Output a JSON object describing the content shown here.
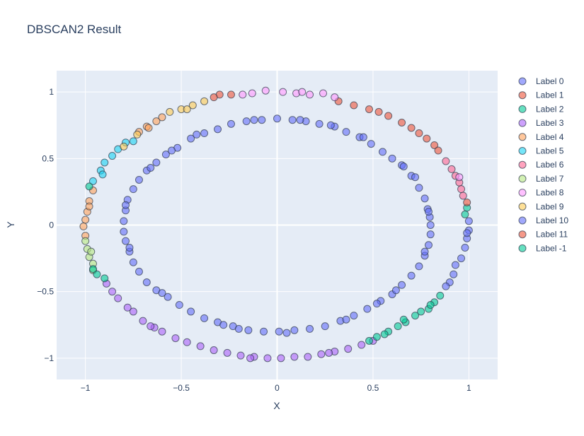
{
  "chart_data": {
    "type": "scatter",
    "title": "DBSCAN2 Result",
    "xlabel": "X",
    "ylabel": "Y",
    "xlim": [
      -1.15,
      1.15
    ],
    "ylim": [
      -1.16,
      1.16
    ],
    "xticks": [
      -1,
      -0.5,
      0,
      0.5,
      1
    ],
    "xtick_labels": [
      "−1",
      "−0.5",
      "0",
      "0.5",
      "1"
    ],
    "yticks": [
      -1,
      -0.5,
      0,
      0.5,
      1
    ],
    "ytick_labels": [
      "−1",
      "−0.5",
      "0",
      "0.5",
      "1"
    ],
    "grid": true,
    "legend_position": "right",
    "plot_background": "#e5ecf6",
    "series": [
      {
        "name": "Label 0",
        "color": "#636efa",
        "points": [
          [
            0.8,
            0.0
          ],
          [
            0.796,
            0.06
          ],
          [
            0.785,
            0.12
          ],
          [
            0.77,
            0.2
          ],
          [
            0.74,
            0.28
          ],
          [
            0.7,
            0.37
          ],
          [
            0.65,
            0.45
          ],
          [
            0.6,
            0.5
          ],
          [
            0.55,
            0.55
          ],
          [
            0.49,
            0.61
          ],
          [
            0.43,
            0.66
          ],
          [
            0.36,
            0.7
          ],
          [
            0.3,
            0.74
          ],
          [
            0.22,
            0.76
          ],
          [
            0.15,
            0.78
          ],
          [
            0.08,
            0.79
          ],
          [
            0.0,
            0.8
          ],
          [
            -0.08,
            0.79
          ],
          [
            -0.16,
            0.78
          ],
          [
            -0.24,
            0.76
          ],
          [
            -0.31,
            0.72
          ],
          [
            -0.38,
            0.69
          ],
          [
            -0.45,
            0.65
          ],
          [
            -0.52,
            0.58
          ],
          [
            -0.58,
            0.53
          ],
          [
            -0.63,
            0.47
          ],
          [
            -0.68,
            0.41
          ],
          [
            -0.72,
            0.34
          ],
          [
            -0.75,
            0.27
          ],
          [
            -0.78,
            0.19
          ],
          [
            -0.79,
            0.11
          ],
          [
            -0.8,
            0.03
          ],
          [
            -0.8,
            -0.05
          ],
          [
            -0.79,
            -0.12
          ],
          [
            -0.77,
            -0.2
          ],
          [
            -0.75,
            -0.28
          ],
          [
            -0.72,
            -0.35
          ],
          [
            -0.68,
            -0.43
          ],
          [
            -0.63,
            -0.49
          ],
          [
            -0.57,
            -0.54
          ],
          [
            -0.51,
            -0.6
          ],
          [
            -0.45,
            -0.65
          ],
          [
            -0.38,
            -0.7
          ],
          [
            -0.31,
            -0.73
          ],
          [
            -0.23,
            -0.76
          ],
          [
            -0.15,
            -0.79
          ],
          [
            -0.07,
            -0.8
          ],
          [
            0.01,
            -0.8
          ],
          [
            0.09,
            -0.79
          ],
          [
            0.17,
            -0.78
          ],
          [
            0.25,
            -0.76
          ],
          [
            0.33,
            -0.72
          ],
          [
            0.4,
            -0.68
          ],
          [
            0.47,
            -0.63
          ],
          [
            0.54,
            -0.57
          ],
          [
            0.6,
            -0.52
          ],
          [
            0.65,
            -0.45
          ],
          [
            0.7,
            -0.38
          ],
          [
            0.74,
            -0.31
          ],
          [
            0.77,
            -0.23
          ],
          [
            0.79,
            -0.15
          ],
          [
            0.8,
            -0.07
          ],
          [
            0.72,
            0.36
          ],
          [
            -0.66,
            0.43
          ],
          [
            0.52,
            -0.59
          ],
          [
            -0.2,
            -0.78
          ],
          [
            0.12,
            0.79
          ],
          [
            -0.55,
            0.56
          ],
          [
            0.79,
            0.1
          ],
          [
            -0.77,
            -0.17
          ],
          [
            0.36,
            -0.71
          ],
          [
            -0.42,
            0.68
          ],
          [
            0.66,
            0.44
          ],
          [
            -0.6,
            -0.51
          ],
          [
            0.28,
            0.75
          ],
          [
            -0.28,
            -0.75
          ],
          [
            0.77,
            -0.2
          ],
          [
            -0.79,
            0.15
          ],
          [
            0.45,
            0.66
          ],
          [
            0.05,
            -0.81
          ],
          [
            -0.12,
            0.79
          ],
          [
            0.62,
            -0.49
          ]
        ]
      },
      {
        "name": "Label 1",
        "color": "#EF553B",
        "points": [
          [
            0.32,
            0.93
          ],
          [
            0.4,
            0.9
          ],
          [
            0.48,
            0.87
          ],
          [
            0.53,
            0.85
          ],
          [
            0.58,
            0.82
          ],
          [
            0.65,
            0.77
          ],
          [
            0.7,
            0.73
          ],
          [
            0.74,
            0.69
          ],
          [
            0.78,
            0.65
          ],
          [
            0.82,
            0.6
          ],
          [
            0.84,
            0.56
          ]
        ]
      },
      {
        "name": "Label 2",
        "color": "#00cc96",
        "points": [
          [
            0.99,
            0.13
          ],
          [
            0.98,
            0.08
          ]
        ]
      },
      {
        "name": "Label 3",
        "color": "#ab63fa",
        "points": [
          [
            -0.89,
            -0.44
          ],
          [
            -0.86,
            -0.5
          ],
          [
            -0.83,
            -0.55
          ],
          [
            -0.78,
            -0.62
          ],
          [
            -0.75,
            -0.65
          ],
          [
            -0.7,
            -0.72
          ],
          [
            -0.64,
            -0.77
          ],
          [
            -0.6,
            -0.8
          ],
          [
            -0.53,
            -0.85
          ],
          [
            -0.47,
            -0.88
          ],
          [
            -0.4,
            -0.91
          ],
          [
            -0.33,
            -0.94
          ],
          [
            -0.26,
            -0.96
          ],
          [
            -0.19,
            -0.98
          ],
          [
            -0.12,
            -0.99
          ],
          [
            -0.05,
            -1.0
          ],
          [
            0.02,
            -1.0
          ],
          [
            0.09,
            -0.99
          ],
          [
            0.16,
            -0.99
          ],
          [
            0.23,
            -0.97
          ],
          [
            0.3,
            -0.95
          ],
          [
            0.37,
            -0.93
          ],
          [
            0.44,
            -0.9
          ],
          [
            0.5,
            -0.87
          ],
          [
            -0.66,
            -0.76
          ],
          [
            -0.14,
            -1.0
          ],
          [
            0.27,
            -0.96
          ]
        ]
      },
      {
        "name": "Label 4",
        "color": "#FFA15A",
        "points": [
          [
            -0.6,
            0.81
          ],
          [
            -0.63,
            0.78
          ],
          [
            -0.68,
            0.74
          ],
          [
            -0.72,
            0.7
          ],
          [
            -0.96,
            0.26
          ],
          [
            -0.98,
            0.18
          ],
          [
            -0.99,
            0.1
          ],
          [
            -1.0,
            0.04
          ],
          [
            -1.01,
            -0.01
          ],
          [
            -1.0,
            -0.08
          ],
          [
            -0.98,
            0.14
          ],
          [
            -0.67,
            0.73
          ]
        ]
      },
      {
        "name": "Label 5",
        "color": "#19d3f3",
        "points": [
          [
            -0.96,
            0.33
          ],
          [
            -0.92,
            0.41
          ],
          [
            -0.9,
            0.47
          ],
          [
            -0.86,
            0.52
          ],
          [
            -0.83,
            0.57
          ],
          [
            -0.79,
            0.62
          ],
          [
            -0.75,
            0.63
          ],
          [
            -0.91,
            0.38
          ]
        ]
      },
      {
        "name": "Label 6",
        "color": "#FF6692",
        "points": [
          [
            0.88,
            0.48
          ],
          [
            0.91,
            0.42
          ],
          [
            0.93,
            0.37
          ],
          [
            0.95,
            0.32
          ],
          [
            0.96,
            0.27
          ],
          [
            0.97,
            0.22
          ]
        ]
      },
      {
        "name": "Label 7",
        "color": "#B6E880",
        "points": [
          [
            -1.0,
            -0.12
          ],
          [
            -0.99,
            -0.18
          ],
          [
            -0.98,
            -0.24
          ],
          [
            -0.96,
            -0.29
          ],
          [
            -0.96,
            -0.34
          ],
          [
            -0.97,
            -0.2
          ]
        ]
      },
      {
        "name": "Label 8",
        "color": "#FF97FF",
        "points": [
          [
            -0.13,
            0.99
          ],
          [
            -0.06,
            1.01
          ],
          [
            0.03,
            1.0
          ],
          [
            0.1,
            0.99
          ],
          [
            0.17,
            0.98
          ],
          [
            0.24,
            0.99
          ],
          [
            0.3,
            0.96
          ],
          [
            0.95,
            0.36
          ],
          [
            -0.18,
            0.98
          ],
          [
            0.13,
            1.0
          ]
        ]
      },
      {
        "name": "Label 9",
        "color": "#FECB52",
        "points": [
          [
            -0.5,
            0.87
          ],
          [
            -0.44,
            0.9
          ],
          [
            -0.38,
            0.93
          ],
          [
            -0.56,
            0.85
          ],
          [
            -0.47,
            0.87
          ],
          [
            -0.73,
            0.68
          ],
          [
            -0.8,
            0.59
          ]
        ]
      },
      {
        "name": "Label 10",
        "color": "#636efa",
        "points": [
          [
            1.0,
            0.03
          ],
          [
            1.0,
            -0.04
          ],
          [
            0.99,
            -0.1
          ],
          [
            0.98,
            -0.17
          ],
          [
            0.96,
            -0.25
          ],
          [
            0.93,
            -0.3
          ],
          [
            0.92,
            -0.37
          ],
          [
            0.9,
            -0.43
          ],
          [
            0.88,
            -0.46
          ],
          [
            0.99,
            -0.06
          ]
        ]
      },
      {
        "name": "Label 11",
        "color": "#EF553B",
        "points": [
          [
            -0.3,
            0.98
          ],
          [
            -0.24,
            0.98
          ],
          [
            -0.33,
            0.96
          ],
          [
            0.99,
            0.17
          ]
        ]
      },
      {
        "name": "Label -1",
        "color": "#00cc96",
        "points": [
          [
            -0.98,
            0.29
          ],
          [
            -0.94,
            -0.37
          ],
          [
            -0.9,
            -0.4
          ],
          [
            0.85,
            -0.53
          ],
          [
            0.82,
            -0.58
          ],
          [
            0.79,
            -0.63
          ],
          [
            0.75,
            -0.65
          ],
          [
            0.72,
            -0.68
          ],
          [
            0.67,
            -0.73
          ],
          [
            0.63,
            -0.76
          ],
          [
            0.58,
            -0.8
          ],
          [
            0.52,
            -0.84
          ],
          [
            0.48,
            -0.87
          ],
          [
            0.56,
            -0.82
          ],
          [
            0.66,
            -0.71
          ],
          [
            0.8,
            -0.6
          ],
          [
            -0.96,
            -0.33
          ]
        ]
      }
    ]
  }
}
